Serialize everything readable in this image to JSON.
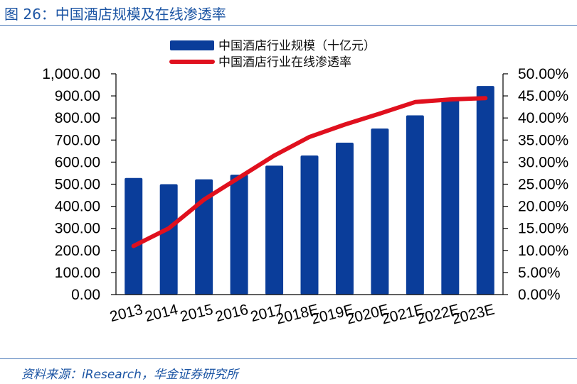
{
  "figure": {
    "title": "图 26：中国酒店规模及在线渗透率",
    "source": "资料来源：iResearch，华金证券研究所"
  },
  "colors": {
    "bar": "#0a3d9a",
    "line": "#e0101e",
    "title": "#1c55a4"
  },
  "chart_data": {
    "type": "bar+line",
    "categories": [
      "2013",
      "2014",
      "2015",
      "2016",
      "2017",
      "2018E",
      "2019E",
      "2020E",
      "2021E",
      "2022E",
      "2023E"
    ],
    "series": [
      {
        "name": "中国酒店行业规模（十亿元）",
        "type": "bar",
        "axis": "left",
        "values": [
          528,
          500,
          522,
          543,
          584,
          630,
          688,
          752,
          812,
          885,
          945
        ]
      },
      {
        "name": "中国酒店行业在线渗透率",
        "type": "line",
        "axis": "right",
        "values": [
          0.11,
          0.15,
          0.215,
          0.265,
          0.315,
          0.357,
          0.385,
          0.41,
          0.436,
          0.442,
          0.445
        ]
      }
    ],
    "y_left": {
      "ylim": [
        0,
        1000
      ],
      "ticks": [
        "0.00",
        "100.00",
        "200.00",
        "300.00",
        "400.00",
        "500.00",
        "600.00",
        "700.00",
        "800.00",
        "900.00",
        "1,000.00"
      ]
    },
    "y_right": {
      "ylim": [
        0,
        0.5
      ],
      "ticks": [
        "0.00%",
        "5.00%",
        "10.00%",
        "15.00%",
        "20.00%",
        "25.00%",
        "30.00%",
        "35.00%",
        "40.00%",
        "45.00%",
        "50.00%"
      ]
    },
    "legend_position": "top-center",
    "grid": false
  }
}
